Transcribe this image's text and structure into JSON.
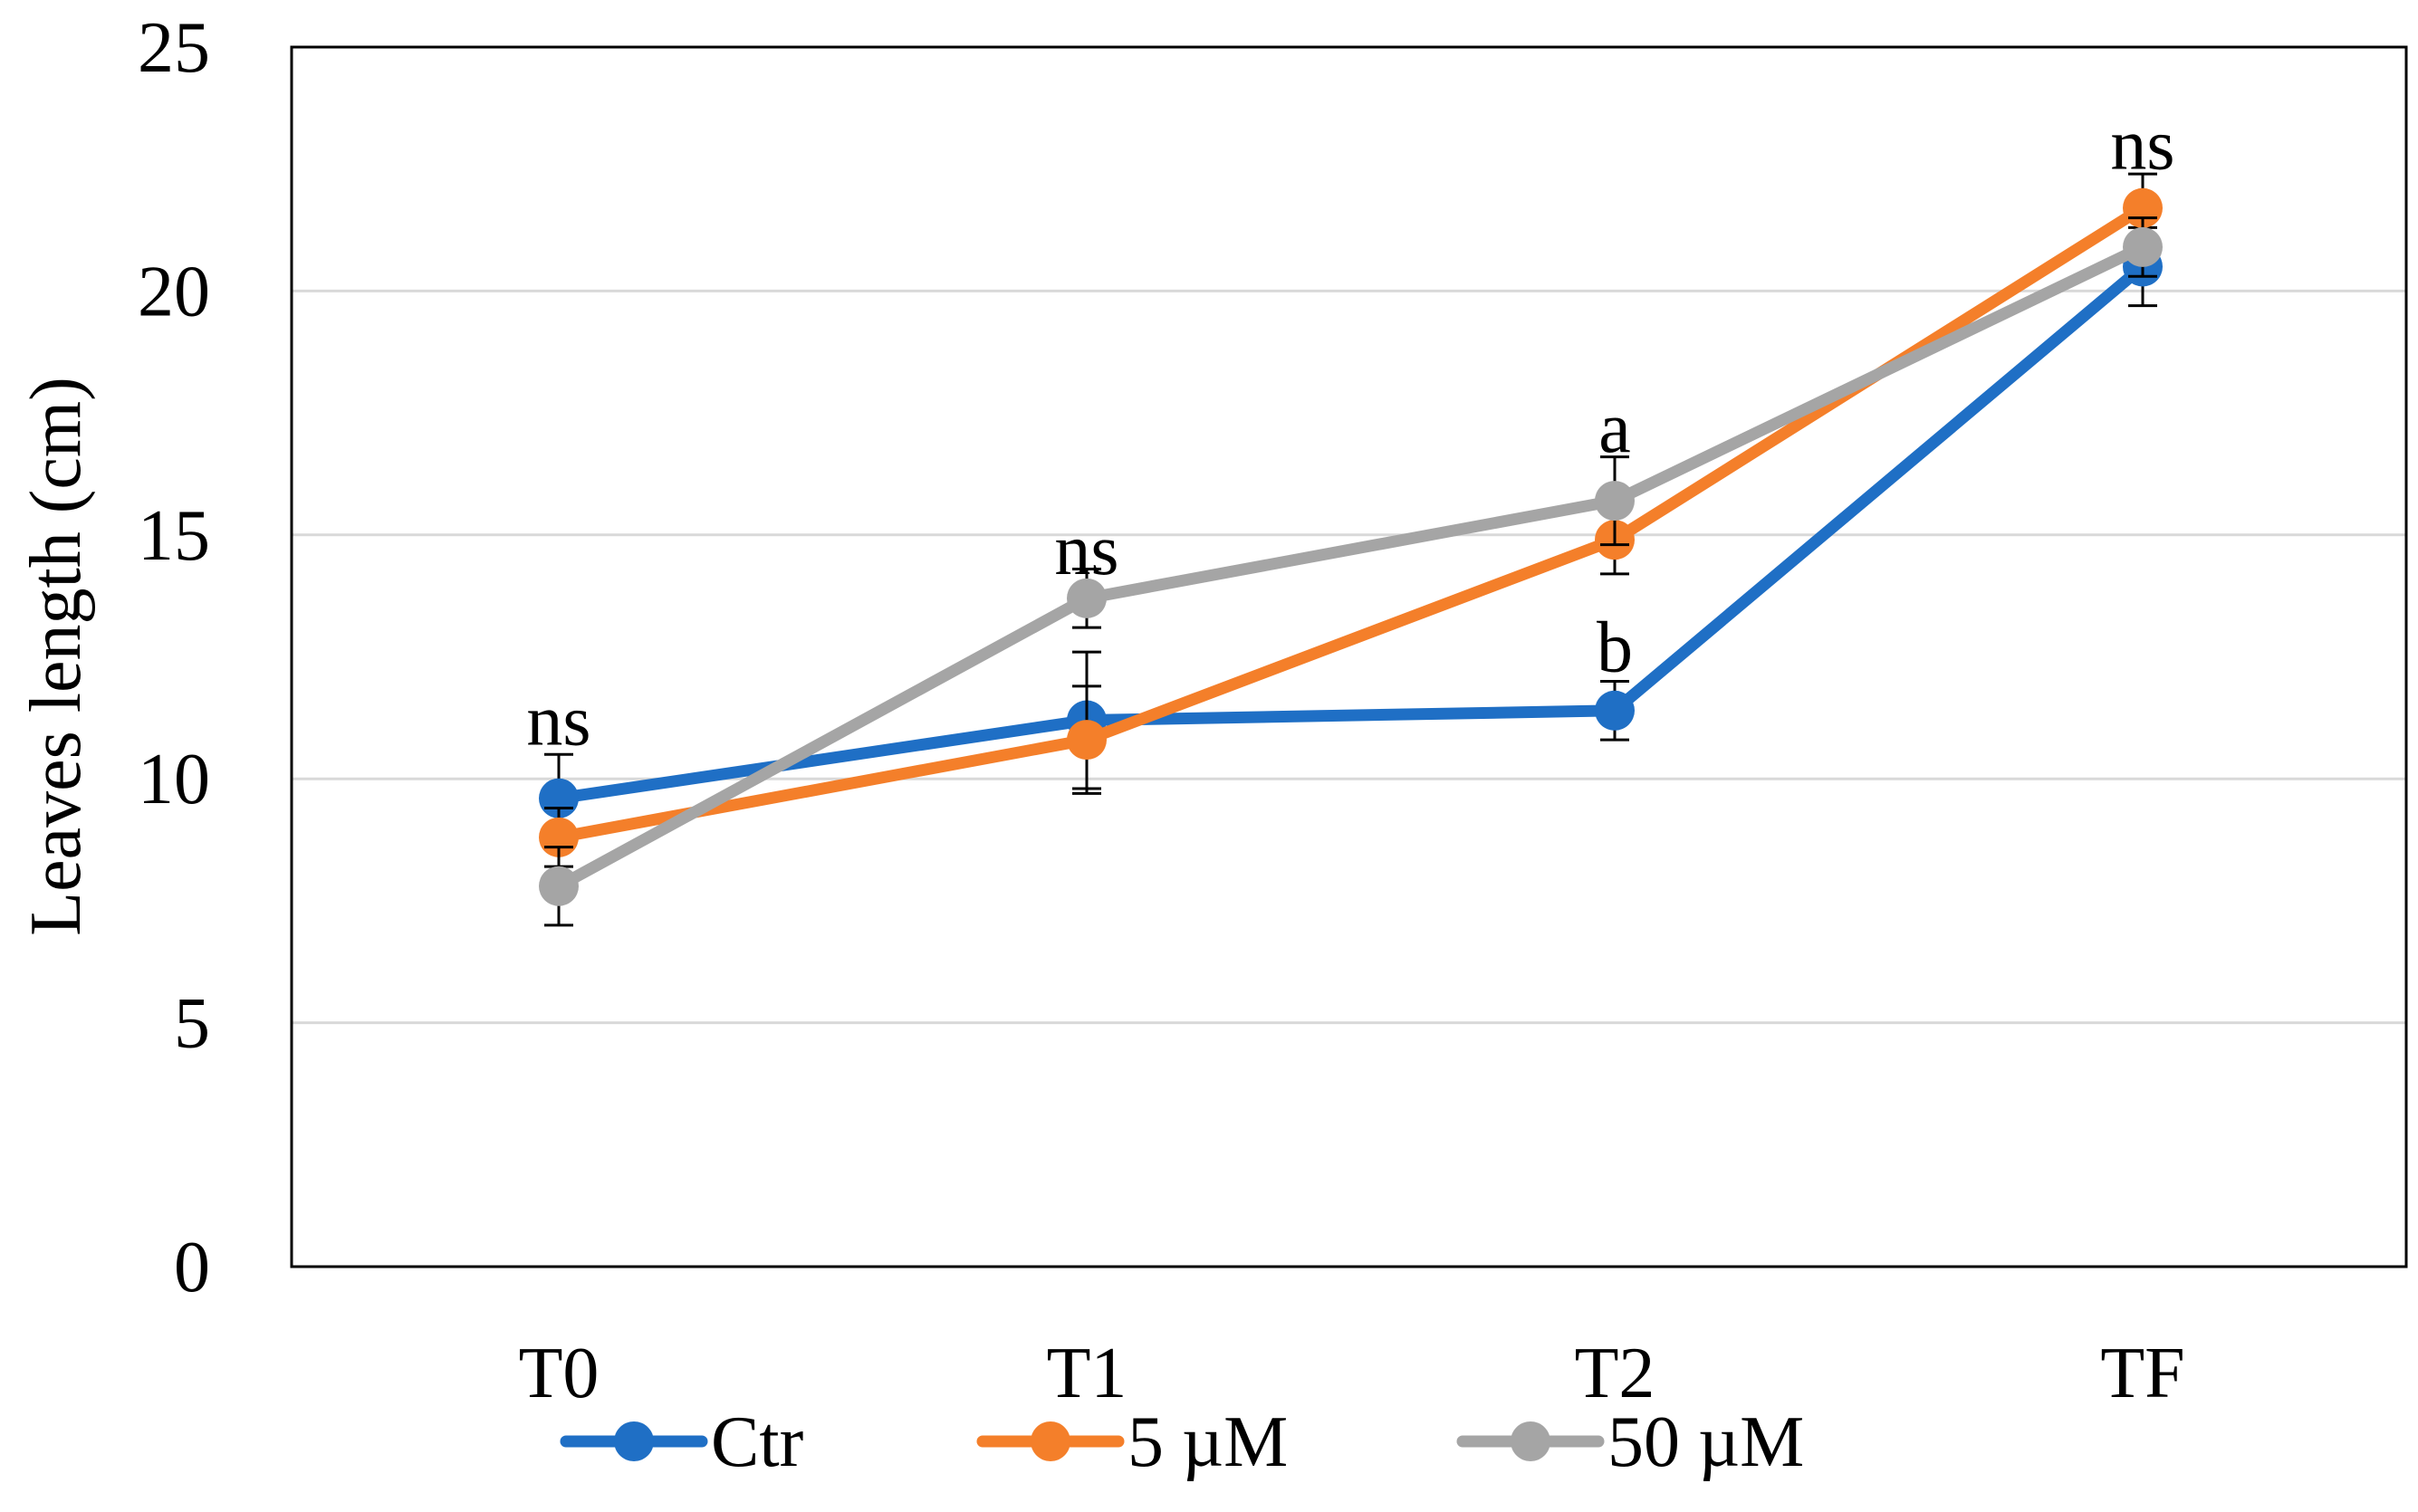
{
  "chart_data": {
    "type": "line",
    "title": "",
    "xlabel": "",
    "ylabel": "Leaves length (cm)",
    "categories": [
      "T0",
      "T1",
      "T2",
      "TF"
    ],
    "ylim": [
      0,
      25
    ],
    "yticks": [
      "0",
      "5",
      "10",
      "15",
      "20",
      "25"
    ],
    "grid": true,
    "legend_position": "bottom",
    "series": [
      {
        "name": "Ctr",
        "color": "#1f6fc5",
        "values": [
          9.6,
          11.2,
          11.4,
          20.5
        ],
        "errors": [
          0.9,
          1.4,
          0.6,
          0.8
        ]
      },
      {
        "name": "5 µM",
        "color": "#f47f2a",
        "values": [
          8.8,
          10.8,
          14.9,
          21.7
        ],
        "errors": [
          0.6,
          1.1,
          0.7,
          0.7
        ]
      },
      {
        "name": "50 µM",
        "color": "#a5a5a5",
        "values": [
          7.8,
          13.7,
          15.7,
          20.9
        ],
        "errors": [
          0.8,
          0.6,
          0.9,
          0.6
        ]
      }
    ],
    "annotations": [
      {
        "text": "ns",
        "category": "T0",
        "y": 10.7
      },
      {
        "text": "ns",
        "category": "T1",
        "y": 14.2
      },
      {
        "text": "a",
        "category": "T2",
        "y": 16.7
      },
      {
        "text": "b",
        "category": "T2",
        "y": 12.2
      },
      {
        "text": "ns",
        "category": "TF",
        "y": 22.5
      }
    ]
  }
}
